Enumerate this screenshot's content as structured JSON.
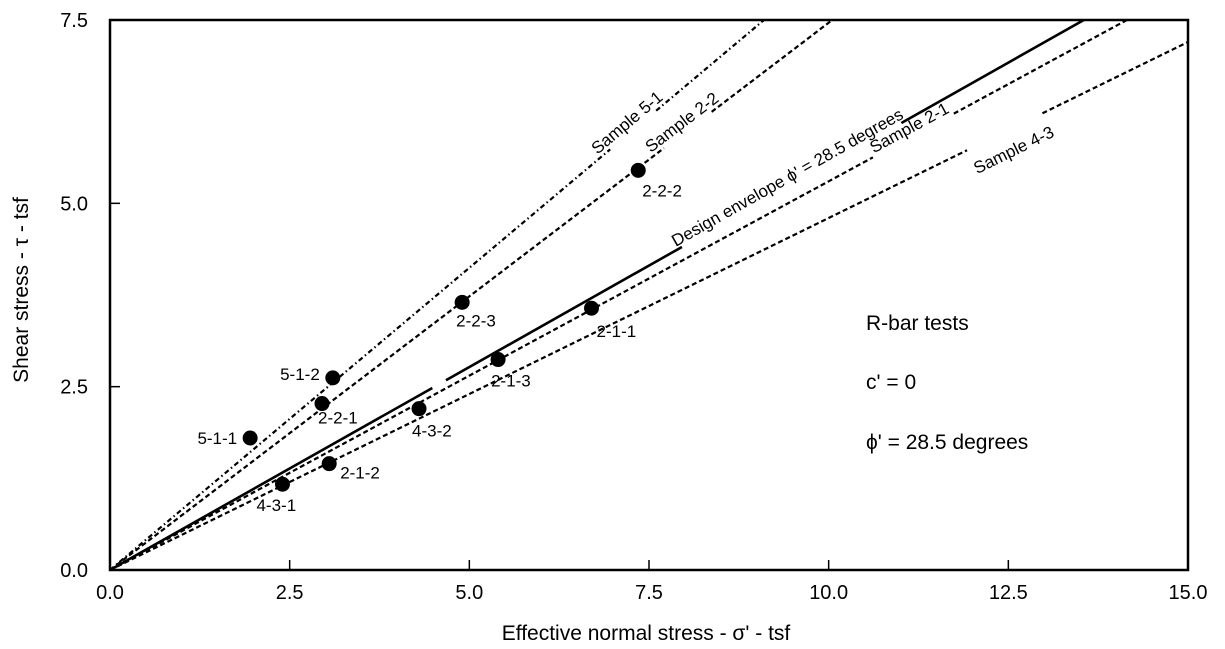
{
  "chart_data": {
    "type": "scatter",
    "xlabel": "Effective normal stress - σ' - tsf",
    "ylabel": "Shear stress - τ - tsf",
    "xlim": [
      0,
      15
    ],
    "ylim": [
      0,
      7.5
    ],
    "x_ticks": [
      "0.0",
      "2.5",
      "5.0",
      "7.5",
      "10.0",
      "12.5",
      "15.0"
    ],
    "y_ticks": [
      "0.0",
      "2.5",
      "5.0",
      "7.5"
    ],
    "grid": false,
    "points": [
      {
        "label": "5-1-1",
        "x": 1.95,
        "y": 1.8
      },
      {
        "label": "5-1-2",
        "x": 3.1,
        "y": 2.62
      },
      {
        "label": "2-2-1",
        "x": 2.95,
        "y": 2.27
      },
      {
        "label": "2-2-3",
        "x": 4.9,
        "y": 3.65
      },
      {
        "label": "2-2-2",
        "x": 7.35,
        "y": 5.45
      },
      {
        "label": "4-3-1",
        "x": 2.4,
        "y": 1.17
      },
      {
        "label": "2-1-2",
        "x": 3.05,
        "y": 1.45
      },
      {
        "label": "4-3-2",
        "x": 4.3,
        "y": 2.2
      },
      {
        "label": "2-1-3",
        "x": 5.4,
        "y": 2.87
      },
      {
        "label": "2-1-1",
        "x": 6.7,
        "y": 3.57
      }
    ],
    "series": [
      {
        "name": "Sample 5-1",
        "style": "dash-dot",
        "x": [
          0,
          9.1
        ],
        "y": [
          0,
          7.5
        ]
      },
      {
        "name": "Sample 2-2",
        "style": "dashed",
        "x": [
          0,
          10.05
        ],
        "y": [
          0,
          7.5
        ]
      },
      {
        "name": "Design envelope ϕ' = 28.5 degrees",
        "style": "solid",
        "x": [
          0,
          13.55
        ],
        "y": [
          0,
          7.5
        ]
      },
      {
        "name": "Sample 2-1",
        "style": "dashed",
        "x": [
          0,
          14.15
        ],
        "y": [
          0,
          7.5
        ]
      },
      {
        "name": "Sample 4-3",
        "style": "dashed",
        "x": [
          0,
          15
        ],
        "y": [
          0,
          7.2
        ]
      }
    ],
    "annotations": [
      "R-bar tests",
      "c' = 0",
      "ϕ' = 28.5 degrees"
    ],
    "colors": {
      "ink": "#000000",
      "background": "#ffffff"
    }
  }
}
